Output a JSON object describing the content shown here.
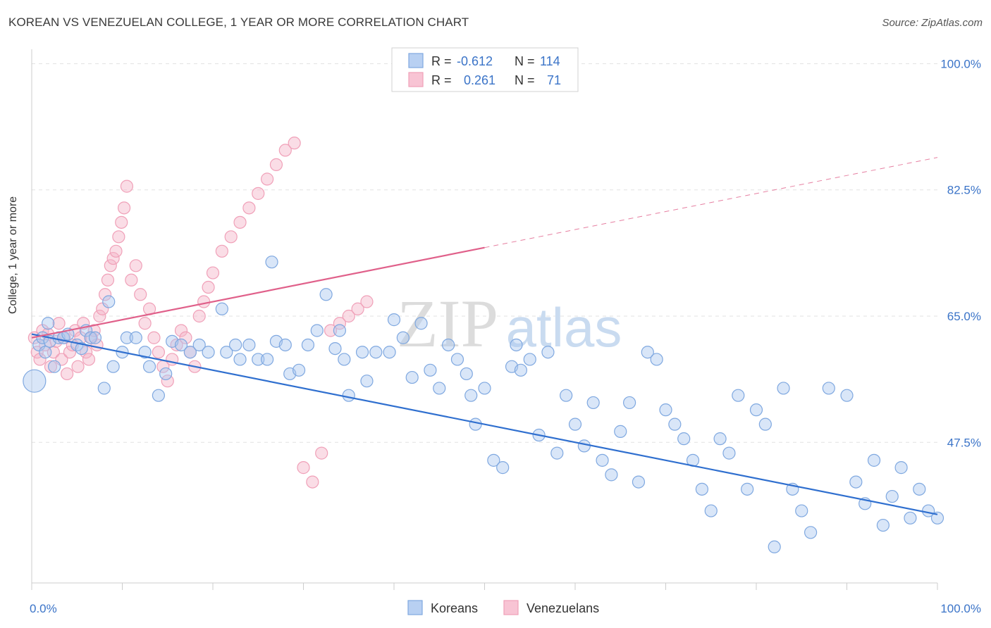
{
  "header": {
    "title": "KOREAN VS VENEZUELAN COLLEGE, 1 YEAR OR MORE CORRELATION CHART",
    "source": "Source: ZipAtlas.com"
  },
  "watermark": {
    "zip": "ZIP",
    "atlas": "atlas"
  },
  "chart_data": {
    "type": "scatter",
    "title": "KOREAN VS VENEZUELAN COLLEGE, 1 YEAR OR MORE CORRELATION CHART",
    "xlabel": "",
    "ylabel": "College, 1 year or more",
    "xlim": [
      0,
      100
    ],
    "ylim": [
      28,
      102
    ],
    "x_tick_labels": [
      "0.0%",
      "100.0%"
    ],
    "y_ticks": [
      47.5,
      65.0,
      82.5,
      100.0
    ],
    "y_tick_labels": [
      "47.5%",
      "65.0%",
      "82.5%",
      "100.0%"
    ],
    "grid": true,
    "legend": {
      "position": "top-center",
      "entries": [
        {
          "r_label": "R =",
          "r_value": "-0.612",
          "n_label": "N =",
          "n_value": "114"
        },
        {
          "r_label": "R =",
          "r_value": "0.261",
          "n_label": "N =",
          "n_value": "71"
        }
      ]
    },
    "series": [
      {
        "name": "Koreans",
        "color": "#7fa8e0",
        "line_color": "#2f6fcf",
        "trend": {
          "x": [
            0,
            100
          ],
          "y": [
            62.5,
            37.5
          ],
          "dashed_from": null
        },
        "points": [
          [
            0.3,
            56
          ],
          [
            0.8,
            61
          ],
          [
            1.2,
            62
          ],
          [
            1.5,
            60
          ],
          [
            1.8,
            64
          ],
          [
            2.0,
            61.5
          ],
          [
            2.5,
            58
          ],
          [
            3.0,
            62
          ],
          [
            3.5,
            62
          ],
          [
            4.0,
            62.5
          ],
          [
            5.0,
            61
          ],
          [
            5.5,
            60.5
          ],
          [
            6.0,
            63
          ],
          [
            6.5,
            62
          ],
          [
            7.0,
            62
          ],
          [
            8.0,
            55
          ],
          [
            8.5,
            67
          ],
          [
            9.0,
            58
          ],
          [
            10.0,
            60
          ],
          [
            10.5,
            62
          ],
          [
            11.5,
            62
          ],
          [
            12.5,
            60
          ],
          [
            13.0,
            58
          ],
          [
            14.0,
            54
          ],
          [
            14.8,
            57
          ],
          [
            15.5,
            61.5
          ],
          [
            16.5,
            61
          ],
          [
            17.5,
            60
          ],
          [
            18.5,
            61
          ],
          [
            19.5,
            60
          ],
          [
            21.0,
            66
          ],
          [
            21.5,
            60
          ],
          [
            22.5,
            61
          ],
          [
            23.0,
            59
          ],
          [
            24.0,
            61
          ],
          [
            25.0,
            59
          ],
          [
            26.0,
            59
          ],
          [
            26.5,
            72.5
          ],
          [
            27.0,
            61.5
          ],
          [
            28.0,
            61
          ],
          [
            28.5,
            57
          ],
          [
            29.5,
            57.5
          ],
          [
            30.5,
            61
          ],
          [
            31.5,
            63
          ],
          [
            32.5,
            68
          ],
          [
            33.5,
            60.5
          ],
          [
            34.0,
            63
          ],
          [
            34.5,
            59
          ],
          [
            35.0,
            54
          ],
          [
            36.5,
            60
          ],
          [
            37.0,
            56
          ],
          [
            38.0,
            60
          ],
          [
            39.5,
            60
          ],
          [
            40.0,
            64.5
          ],
          [
            41.0,
            62
          ],
          [
            42.0,
            56.5
          ],
          [
            43.0,
            64
          ],
          [
            44.0,
            57.5
          ],
          [
            45.0,
            55
          ],
          [
            46.0,
            61
          ],
          [
            47.0,
            59
          ],
          [
            48.0,
            57
          ],
          [
            48.5,
            54
          ],
          [
            49.0,
            50
          ],
          [
            50.0,
            55
          ],
          [
            51.0,
            45
          ],
          [
            52.0,
            44
          ],
          [
            53.0,
            58
          ],
          [
            53.5,
            61
          ],
          [
            54.0,
            57.5
          ],
          [
            55.0,
            59
          ],
          [
            56.0,
            48.5
          ],
          [
            57.0,
            60
          ],
          [
            58.0,
            46
          ],
          [
            59.0,
            54
          ],
          [
            60.0,
            50
          ],
          [
            61.0,
            47
          ],
          [
            62.0,
            53
          ],
          [
            63.0,
            45
          ],
          [
            64.0,
            43
          ],
          [
            65.0,
            49
          ],
          [
            66.0,
            53
          ],
          [
            67.0,
            42
          ],
          [
            68.0,
            60
          ],
          [
            69.0,
            59
          ],
          [
            70.0,
            52
          ],
          [
            71.0,
            50
          ],
          [
            72.0,
            48
          ],
          [
            73.0,
            45
          ],
          [
            74.0,
            41
          ],
          [
            75.0,
            38
          ],
          [
            76.0,
            48
          ],
          [
            77.0,
            46
          ],
          [
            78.0,
            54
          ],
          [
            79.0,
            41
          ],
          [
            80.0,
            52
          ],
          [
            81.0,
            50
          ],
          [
            82.0,
            33
          ],
          [
            83.0,
            55
          ],
          [
            84.0,
            41
          ],
          [
            85.0,
            38
          ],
          [
            86.0,
            35
          ],
          [
            88.0,
            55
          ],
          [
            90.0,
            54
          ],
          [
            91.0,
            42
          ],
          [
            92.0,
            39
          ],
          [
            93.0,
            45
          ],
          [
            94.0,
            36
          ],
          [
            95.0,
            40
          ],
          [
            96.0,
            44
          ],
          [
            97.0,
            37
          ],
          [
            98.0,
            41
          ],
          [
            99.0,
            38
          ],
          [
            100.0,
            37
          ]
        ]
      },
      {
        "name": "Venezuelans",
        "color": "#f0a0b8",
        "line_color": "#e0608a",
        "trend": {
          "x": [
            0,
            100
          ],
          "y": [
            62,
            87
          ],
          "dashed_from": 50
        },
        "points": [
          [
            0.3,
            62
          ],
          [
            0.6,
            60
          ],
          [
            0.9,
            59
          ],
          [
            1.2,
            63
          ],
          [
            1.5,
            61
          ],
          [
            1.8,
            62.5
          ],
          [
            2.1,
            58
          ],
          [
            2.4,
            60
          ],
          [
            2.7,
            61.5
          ],
          [
            3.0,
            64
          ],
          [
            3.3,
            59
          ],
          [
            3.6,
            62
          ],
          [
            3.9,
            57
          ],
          [
            4.2,
            60
          ],
          [
            4.5,
            61
          ],
          [
            4.8,
            63
          ],
          [
            5.1,
            58
          ],
          [
            5.4,
            62
          ],
          [
            5.7,
            64
          ],
          [
            6.0,
            60
          ],
          [
            6.3,
            59
          ],
          [
            6.6,
            62
          ],
          [
            6.9,
            63
          ],
          [
            7.2,
            61
          ],
          [
            7.5,
            65
          ],
          [
            7.8,
            66
          ],
          [
            8.1,
            68
          ],
          [
            8.4,
            70
          ],
          [
            8.7,
            72
          ],
          [
            9.0,
            73
          ],
          [
            9.3,
            74
          ],
          [
            9.6,
            76
          ],
          [
            9.9,
            78
          ],
          [
            10.2,
            80
          ],
          [
            10.5,
            83
          ],
          [
            11.0,
            70
          ],
          [
            11.5,
            72
          ],
          [
            12.0,
            68
          ],
          [
            12.5,
            64
          ],
          [
            13.0,
            66
          ],
          [
            13.5,
            62
          ],
          [
            14.0,
            60
          ],
          [
            14.5,
            58
          ],
          [
            15.0,
            56
          ],
          [
            15.5,
            59
          ],
          [
            16.0,
            61
          ],
          [
            16.5,
            63
          ],
          [
            17.0,
            62
          ],
          [
            17.5,
            60
          ],
          [
            18.0,
            58
          ],
          [
            18.5,
            65
          ],
          [
            19.0,
            67
          ],
          [
            19.5,
            69
          ],
          [
            20.0,
            71
          ],
          [
            21.0,
            74
          ],
          [
            22.0,
            76
          ],
          [
            23.0,
            78
          ],
          [
            24.0,
            80
          ],
          [
            25.0,
            82
          ],
          [
            26.0,
            84
          ],
          [
            27.0,
            86
          ],
          [
            28.0,
            88
          ],
          [
            29.0,
            89
          ],
          [
            30.0,
            44
          ],
          [
            31.0,
            42
          ],
          [
            32.0,
            46
          ],
          [
            33.0,
            63
          ],
          [
            34.0,
            64
          ],
          [
            35.0,
            65
          ],
          [
            36.0,
            66
          ],
          [
            37.0,
            67
          ]
        ]
      }
    ]
  },
  "bottom_legend": [
    "Koreans",
    "Venezuelans"
  ]
}
